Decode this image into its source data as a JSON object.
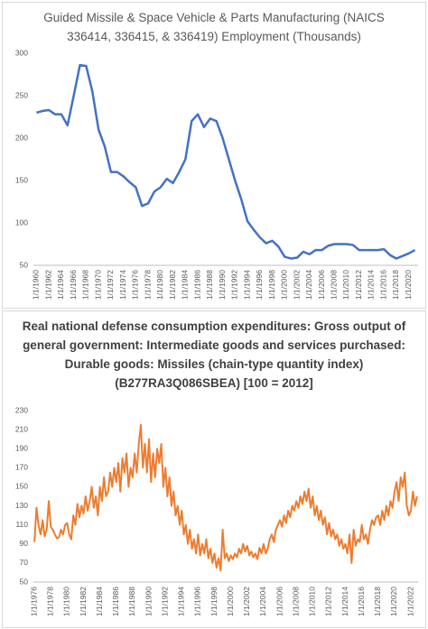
{
  "chart_data": [
    {
      "type": "line",
      "title": "Guided Missile & Space Vehicle & Parts Manufacturing (NAICS 336414, 336415, & 336419) Employment (Thousands)",
      "categories": [
        "1/1/1960",
        null,
        "1/1/1962",
        null,
        "1/1/1964",
        null,
        "1/1/1966",
        null,
        "1/1/1968",
        null,
        "1/1/1970",
        null,
        "1/1/1972",
        null,
        "1/1/1974",
        null,
        "1/1/1976",
        null,
        "1/1/1978",
        null,
        "1/1/1980",
        null,
        "1/1/1982",
        null,
        "1/1/1984",
        null,
        "1/1/1986",
        null,
        "1/1/1988",
        null,
        "1/1/1990",
        null,
        "1/1/1992",
        null,
        "1/1/1994",
        null,
        "1/1/1996",
        null,
        "1/1/1998",
        null,
        "1/1/2000",
        null,
        "1/1/2002",
        null,
        "1/1/2004",
        null,
        "1/1/2006",
        null,
        "1/1/2008",
        null,
        "1/1/2010",
        null,
        "1/1/2012",
        null,
        "1/1/2014",
        null,
        "1/1/2016",
        null,
        "1/1/2018",
        null,
        "1/1/2020",
        null
      ],
      "values": [
        230,
        232,
        233,
        228,
        228,
        215,
        250,
        286,
        285,
        255,
        210,
        190,
        160,
        160,
        155,
        148,
        142,
        120,
        123,
        137,
        142,
        152,
        147,
        160,
        175,
        220,
        228,
        213,
        223,
        220,
        200,
        175,
        150,
        128,
        102,
        92,
        83,
        76,
        79,
        72,
        60,
        58,
        59,
        66,
        63,
        68,
        68,
        73,
        75,
        75,
        75,
        74,
        68,
        68,
        68,
        68,
        69,
        62,
        58,
        61,
        64,
        68
      ],
      "color": "#4472c4",
      "ylim": [
        50,
        300
      ],
      "yticks": [
        50,
        100,
        150,
        200,
        250,
        300
      ],
      "grid": false
    },
    {
      "type": "line",
      "title": "Real national defense consumption expenditures: Gross output of general government: Intermediate goods and services purchased: Durable goods: Missiles (chain-type quantity index) (B277RA3Q086SBEA) [100 = 2012]",
      "categories": [
        "1/1/1976",
        null,
        null,
        null,
        null,
        null,
        null,
        null,
        "1/1/1978",
        null,
        null,
        null,
        null,
        null,
        null,
        null,
        "1/1/1980",
        null,
        null,
        null,
        null,
        null,
        null,
        null,
        "1/1/1982",
        null,
        null,
        null,
        null,
        null,
        null,
        null,
        "1/1/1984",
        null,
        null,
        null,
        null,
        null,
        null,
        null,
        "1/1/1986",
        null,
        null,
        null,
        null,
        null,
        null,
        null,
        "1/1/1988",
        null,
        null,
        null,
        null,
        null,
        null,
        null,
        "1/1/1990",
        null,
        null,
        null,
        null,
        null,
        null,
        null,
        "1/1/1992",
        null,
        null,
        null,
        null,
        null,
        null,
        null,
        "1/1/1994",
        null,
        null,
        null,
        null,
        null,
        null,
        null,
        "1/1/1996",
        null,
        null,
        null,
        null,
        null,
        null,
        null,
        "1/1/1998",
        null,
        null,
        null,
        null,
        null,
        null,
        null,
        "1/1/2000",
        null,
        null,
        null,
        null,
        null,
        null,
        null,
        "1/1/2002",
        null,
        null,
        null,
        null,
        null,
        null,
        null,
        "1/1/2004",
        null,
        null,
        null,
        null,
        null,
        null,
        null,
        "1/1/2006",
        null,
        null,
        null,
        null,
        null,
        null,
        null,
        "1/1/2008",
        null,
        null,
        null,
        null,
        null,
        null,
        null,
        "1/1/2010",
        null,
        null,
        null,
        null,
        null,
        null,
        null,
        "1/1/2012",
        null,
        null,
        null,
        null,
        null,
        null,
        null,
        "1/1/2014",
        null,
        null,
        null,
        null,
        null,
        null,
        null,
        "1/1/2016",
        null,
        null,
        null,
        null,
        null,
        null,
        null,
        "1/1/2018",
        null,
        null,
        null,
        null,
        null,
        null,
        null,
        "1/1/2020",
        null,
        null,
        null,
        null,
        null,
        null,
        null,
        "1/1/2022",
        null,
        null,
        null
      ],
      "values": [
        92,
        128,
        110,
        100,
        115,
        98,
        105,
        135,
        108,
        105,
        100,
        96,
        97,
        105,
        100,
        110,
        112,
        100,
        95,
        120,
        110,
        132,
        118,
        130,
        122,
        140,
        125,
        135,
        150,
        128,
        140,
        120,
        150,
        135,
        160,
        140,
        145,
        165,
        150,
        170,
        155,
        175,
        145,
        180,
        165,
        185,
        150,
        170,
        160,
        185,
        165,
        195,
        215,
        170,
        195,
        165,
        200,
        155,
        185,
        160,
        190,
        175,
        195,
        150,
        170,
        140,
        160,
        130,
        145,
        120,
        130,
        110,
        125,
        100,
        110,
        90,
        105,
        85,
        95,
        80,
        100,
        78,
        90,
        80,
        95,
        75,
        85,
        70,
        80,
        65,
        75,
        62,
        105,
        75,
        80,
        72,
        78,
        74,
        80,
        76,
        85,
        80,
        90,
        82,
        88,
        78,
        82,
        76,
        80,
        74,
        86,
        80,
        90,
        80,
        85,
        95,
        100,
        92,
        105,
        110,
        115,
        108,
        120,
        112,
        125,
        118,
        130,
        125,
        135,
        128,
        140,
        132,
        145,
        135,
        148,
        128,
        140,
        120,
        130,
        115,
        125,
        110,
        118,
        100,
        112,
        98,
        105,
        95,
        100,
        88,
        95,
        85,
        90,
        80,
        100,
        70,
        105,
        88,
        95,
        92,
        110,
        95,
        100,
        90,
        105,
        115,
        110,
        118,
        120,
        110,
        125,
        115,
        130,
        120,
        135,
        128,
        145,
        155,
        135,
        160,
        150,
        165,
        130,
        120,
        125,
        145,
        130,
        140
      ],
      "color": "#ed7d31",
      "ylim": [
        50,
        230
      ],
      "yticks": [
        50,
        70,
        90,
        110,
        130,
        150,
        170,
        190,
        210,
        230
      ],
      "grid": false
    }
  ]
}
